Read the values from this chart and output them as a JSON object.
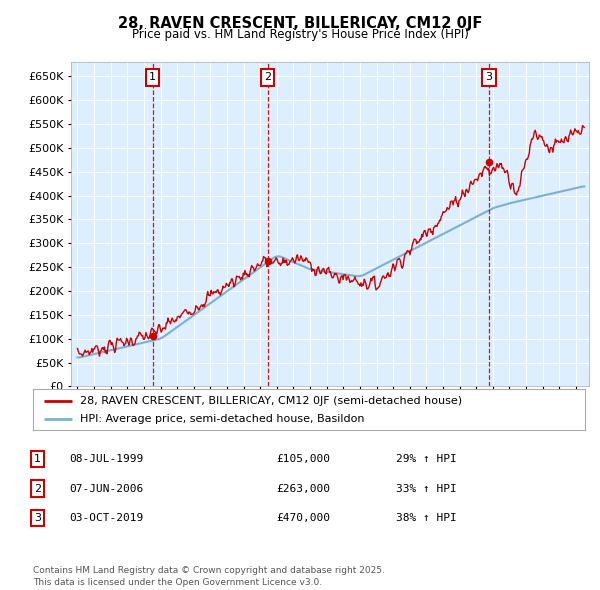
{
  "title": "28, RAVEN CRESCENT, BILLERICAY, CM12 0JF",
  "subtitle": "Price paid vs. HM Land Registry's House Price Index (HPI)",
  "legend_line1": "28, RAVEN CRESCENT, BILLERICAY, CM12 0JF (semi-detached house)",
  "legend_line2": "HPI: Average price, semi-detached house, Basildon",
  "sale_points": [
    {
      "label": "1",
      "date": "08-JUL-1999",
      "price": 105000,
      "hpi_pct": "29% ↑ HPI",
      "year": 1999.52
    },
    {
      "label": "2",
      "date": "07-JUN-2006",
      "price": 263000,
      "hpi_pct": "33% ↑ HPI",
      "year": 2006.44
    },
    {
      "label": "3",
      "date": "03-OCT-2019",
      "price": 470000,
      "hpi_pct": "38% ↑ HPI",
      "year": 2019.75
    }
  ],
  "price_color": "#cc0000",
  "hpi_color": "#7ab0d4",
  "background_color": "#ddeeff",
  "grid_color": "#ffffff",
  "ylim": [
    0,
    680000
  ],
  "yticks": [
    0,
    50000,
    100000,
    150000,
    200000,
    250000,
    300000,
    350000,
    400000,
    450000,
    500000,
    550000,
    600000,
    650000
  ],
  "xlim_start": 1994.6,
  "xlim_end": 2025.8,
  "footer": "Contains HM Land Registry data © Crown copyright and database right 2025.\nThis data is licensed under the Open Government Licence v3.0."
}
